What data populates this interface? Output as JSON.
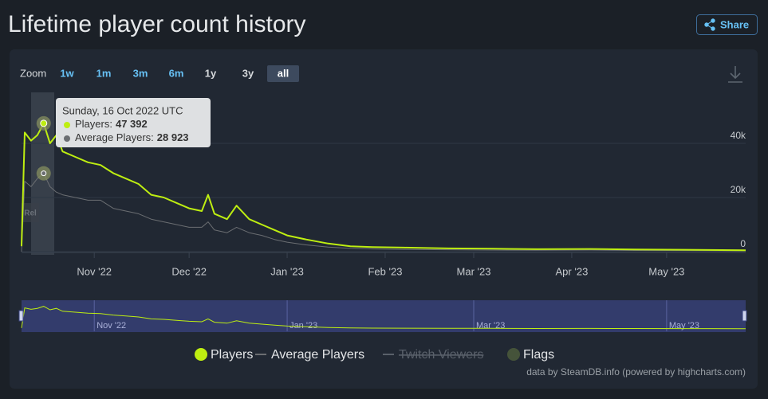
{
  "header": {
    "title": "Lifetime player count history",
    "share": "Share"
  },
  "zoom": {
    "label": "Zoom",
    "buttons": [
      "1w",
      "1m",
      "3m",
      "6m",
      "1y",
      "3y",
      "all"
    ],
    "selected": 6
  },
  "chart_data": {
    "type": "line",
    "x": [
      "2022-10-09",
      "2022-10-10",
      "2022-10-12",
      "2022-10-14",
      "2022-10-16",
      "2022-10-18",
      "2022-10-20",
      "2022-10-22",
      "2022-10-26",
      "2022-10-30",
      "2022-11-03",
      "2022-11-07",
      "2022-11-11",
      "2022-11-15",
      "2022-11-19",
      "2022-11-23",
      "2022-11-27",
      "2022-12-01",
      "2022-12-05",
      "2022-12-07",
      "2022-12-09",
      "2022-12-13",
      "2022-12-16",
      "2022-12-20",
      "2022-12-24",
      "2022-12-28",
      "2023-01-01",
      "2023-01-07",
      "2023-01-14",
      "2023-01-21",
      "2023-01-28",
      "2023-02-07",
      "2023-02-21",
      "2023-03-07",
      "2023-03-21",
      "2023-04-07",
      "2023-04-21",
      "2023-05-07",
      "2023-05-26"
    ],
    "series": [
      {
        "name": "Players",
        "color": "#beee11",
        "values": [
          2000,
          44000,
          41000,
          43000,
          47392,
          40000,
          43000,
          37000,
          35000,
          33000,
          32000,
          29000,
          27000,
          25000,
          21000,
          20000,
          18000,
          16000,
          15000,
          21000,
          14000,
          12000,
          17000,
          12000,
          10000,
          8000,
          6000,
          4500,
          3000,
          2000,
          1700,
          1500,
          1200,
          1100,
          900,
          1000,
          800,
          700,
          500
        ]
      },
      {
        "name": "Average Players",
        "color": "#6b6e72",
        "values": [
          0,
          26000,
          24000,
          27000,
          28923,
          24000,
          22000,
          21000,
          20000,
          19000,
          19000,
          16000,
          15000,
          14000,
          12000,
          11000,
          10000,
          9000,
          9000,
          11000,
          8000,
          7000,
          9000,
          7000,
          6000,
          4500,
          3500,
          2500,
          1700,
          1200,
          1000,
          800,
          700,
          600,
          500,
          600,
          450,
          400,
          300
        ]
      }
    ],
    "xlim": [
      "2022-10-09",
      "2023-05-26"
    ],
    "xticks": [
      {
        "value": "2022-11-01",
        "label": "Nov '22"
      },
      {
        "value": "2022-12-01",
        "label": "Dec '22"
      },
      {
        "value": "2023-01-01",
        "label": "Jan '23"
      },
      {
        "value": "2023-02-01",
        "label": "Feb '23"
      },
      {
        "value": "2023-03-01",
        "label": "Mar '23"
      },
      {
        "value": "2023-04-01",
        "label": "Apr '23"
      },
      {
        "value": "2023-05-01",
        "label": "May '23"
      }
    ],
    "ylim": [
      0,
      60000
    ],
    "yticks": [
      0,
      {
        "value": 20000,
        "label": "20k"
      },
      {
        "value": 40000,
        "label": "40k"
      }
    ],
    "grid": true,
    "tooltip": {
      "x": "2022-10-16",
      "date_label": "Sunday, 16 Oct 2022 UTC",
      "items": [
        {
          "label": "Players:",
          "value_label": "47 392"
        },
        {
          "label": "Average Players:",
          "value_label": "28 923"
        }
      ]
    },
    "flags": [
      {
        "label": "Rel"
      }
    ],
    "legend_items": [
      {
        "name": "Twitch Viewers",
        "hidden": true,
        "color": "#59606a"
      },
      {
        "name": "Flags",
        "hidden": false,
        "color": "#45533a"
      }
    ]
  },
  "credit": "data by SteamDB.info (powered by highcharts.com)"
}
